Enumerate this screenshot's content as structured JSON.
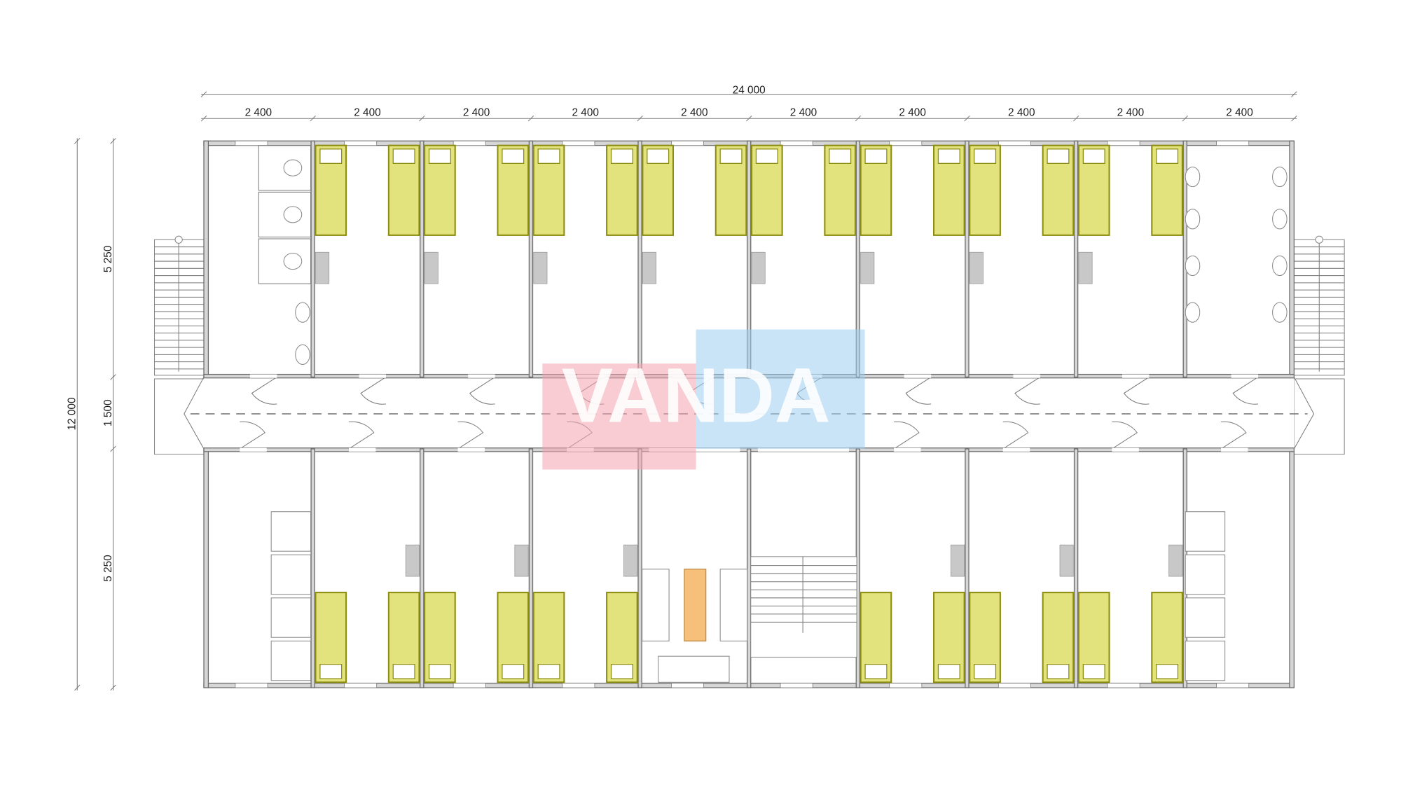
{
  "dimensions": {
    "overall_width": "24 000",
    "module_widths": [
      "2 400",
      "2 400",
      "2 400",
      "2 400",
      "2 400",
      "2 400",
      "2 400",
      "2 400",
      "2 400",
      "2 400"
    ],
    "overall_depth": "12 000",
    "depth_parts": [
      "5 250",
      "1 500",
      "5 250"
    ]
  },
  "watermark": "VANDA"
}
